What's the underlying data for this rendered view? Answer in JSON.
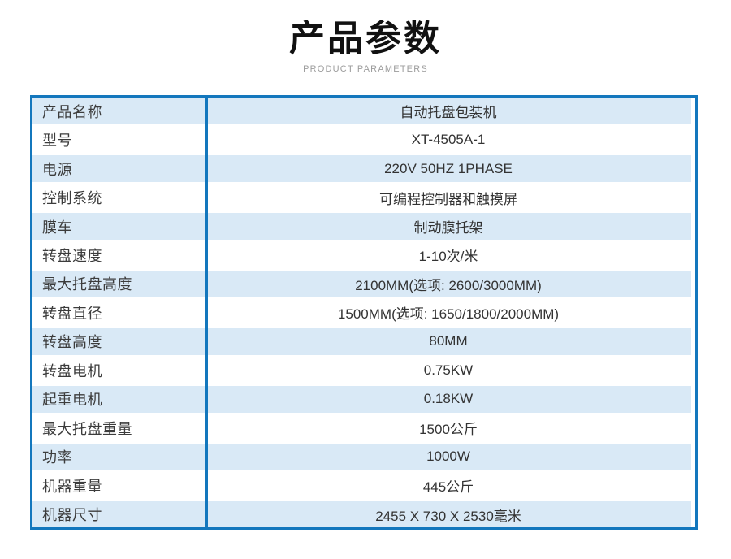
{
  "page": {
    "title": "产品参数",
    "subtitle": "PRODUCT PARAMETERS"
  },
  "colors": {
    "table_border": "#1377bd",
    "row_stripe": "#d9e9f6"
  },
  "table": {
    "rows": [
      {
        "label": "产品名称",
        "value": "自动托盘包装机"
      },
      {
        "label": "型号",
        "value": "XT-4505A-1"
      },
      {
        "label": "电源",
        "value": "220V 50HZ 1PHASE"
      },
      {
        "label": "控制系统",
        "value": "可编程控制器和触摸屏"
      },
      {
        "label": "膜车",
        "value": "制动膜托架"
      },
      {
        "label": "转盘速度",
        "value": "1-10次/米"
      },
      {
        "label": "最大托盘高度",
        "value": "2100MM(选项: 2600/3000MM)"
      },
      {
        "label": "转盘直径",
        "value": "1500MM(选项: 1650/1800/2000MM)"
      },
      {
        "label": "转盘高度",
        "value": "80MM"
      },
      {
        "label": "转盘电机",
        "value": "0.75KW"
      },
      {
        "label": "起重电机",
        "value": "0.18KW"
      },
      {
        "label": "最大托盘重量",
        "value": "1500公斤"
      },
      {
        "label": "功率",
        "value": "1000W"
      },
      {
        "label": "机器重量",
        "value": "445公斤"
      },
      {
        "label": "机器尺寸",
        "value": "2455 X 730 X 2530毫米"
      }
    ]
  }
}
